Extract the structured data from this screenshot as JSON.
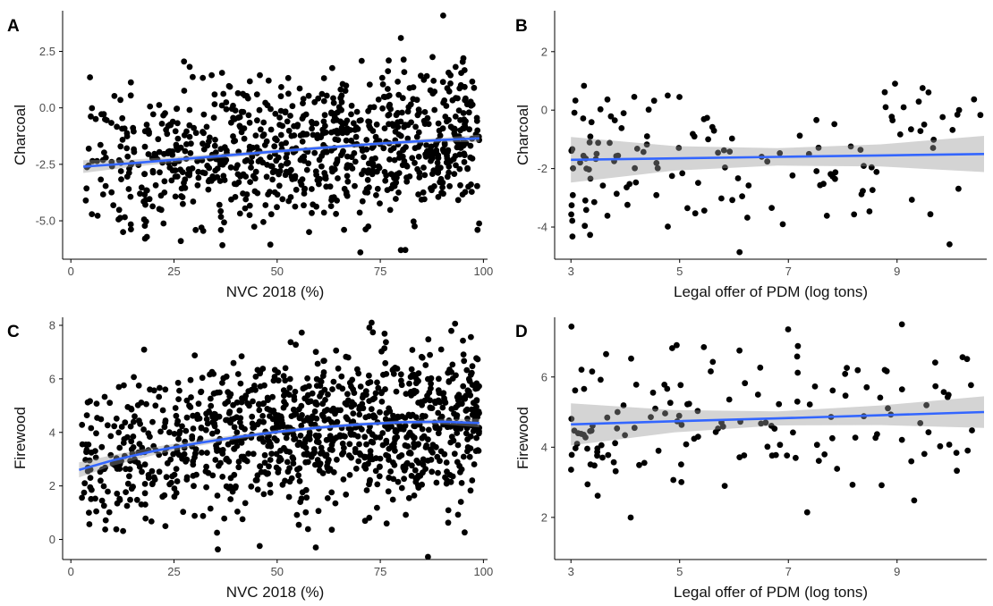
{
  "chart_data": [
    {
      "id": "A",
      "type": "scatter",
      "panel_label": "A",
      "xlabel": "NVC 2018 (%)",
      "ylabel": "Charcoal",
      "xlim": [
        -2,
        101
      ],
      "ylim": [
        -6.7,
        4.3
      ],
      "xticks": [
        0,
        25,
        50,
        75,
        100
      ],
      "yticks": [
        -5.0,
        -2.5,
        0.0,
        2.5
      ],
      "ytick_labels": [
        "-5.0",
        "-2.5",
        "0.0",
        "2.5"
      ],
      "points": {
        "description_free_generation": true,
        "n": 900,
        "x_range": [
          3,
          99
        ],
        "x_skew": 1.3,
        "trend": [
          [
            3,
            -2.6
          ],
          [
            30,
            -2.2
          ],
          [
            60,
            -1.75
          ],
          [
            99,
            -1.35
          ]
        ],
        "spread": 1.6,
        "y_range": [
          -6.4,
          4.2
        ],
        "seed": 11
      },
      "smooth": {
        "x": [
          3,
          15,
          30,
          45,
          60,
          75,
          90,
          99
        ],
        "y": [
          -2.6,
          -2.45,
          -2.22,
          -2.0,
          -1.78,
          -1.58,
          -1.42,
          -1.35
        ],
        "ci": [
          0.28,
          0.16,
          0.11,
          0.09,
          0.08,
          0.08,
          0.1,
          0.16
        ]
      }
    },
    {
      "id": "B",
      "type": "scatter",
      "panel_label": "B",
      "xlabel": "Legal offer of PDM (log tons)",
      "ylabel": "Charcoal",
      "xlim": [
        2.7,
        10.65
      ],
      "ylim": [
        -5.1,
        3.4
      ],
      "xticks": [
        3,
        5,
        7,
        9
      ],
      "yticks": [
        -4,
        -2,
        0,
        2
      ],
      "ytick_labels": [
        "-4",
        "-2",
        "0",
        "2"
      ],
      "points": {
        "description_free_generation": true,
        "n": 140,
        "x_range": [
          3.0,
          10.6
        ],
        "x_skew": 0.7,
        "trend": [
          [
            3.0,
            -1.7
          ],
          [
            10.6,
            -1.5
          ]
        ],
        "spread": 1.45,
        "y_range": [
          -4.9,
          3.3
        ],
        "seed": 23
      },
      "smooth": {
        "x": [
          3.0,
          4.9,
          6.8,
          8.7,
          10.6
        ],
        "y": [
          -1.7,
          -1.65,
          -1.6,
          -1.55,
          -1.5
        ],
        "ci": [
          0.78,
          0.42,
          0.3,
          0.38,
          0.62
        ]
      }
    },
    {
      "id": "C",
      "type": "scatter",
      "panel_label": "C",
      "xlabel": "NVC 2018 (%)",
      "ylabel": "Firewood",
      "xlim": [
        -2,
        101
      ],
      "ylim": [
        -0.75,
        8.3
      ],
      "xticks": [
        0,
        25,
        50,
        75,
        100
      ],
      "yticks": [
        0,
        2,
        4,
        6,
        8
      ],
      "ytick_labels": [
        "0",
        "2",
        "4",
        "6",
        "8"
      ],
      "points": {
        "description_free_generation": true,
        "n": 1100,
        "x_range": [
          2,
          99
        ],
        "x_skew": 1.25,
        "trend": [
          [
            2,
            2.6
          ],
          [
            20,
            3.25
          ],
          [
            40,
            3.8
          ],
          [
            60,
            4.2
          ],
          [
            80,
            4.42
          ],
          [
            99,
            4.35
          ]
        ],
        "spread": 1.4,
        "y_range": [
          -0.65,
          8.1
        ],
        "seed": 37
      },
      "smooth": {
        "x": [
          2,
          10,
          20,
          30,
          40,
          50,
          60,
          70,
          80,
          90,
          99
        ],
        "y": [
          2.6,
          2.95,
          3.3,
          3.58,
          3.82,
          4.02,
          4.18,
          4.3,
          4.38,
          4.4,
          4.35
        ],
        "ci": [
          0.28,
          0.2,
          0.15,
          0.11,
          0.09,
          0.08,
          0.07,
          0.07,
          0.07,
          0.1,
          0.16
        ]
      }
    },
    {
      "id": "D",
      "type": "scatter",
      "panel_label": "D",
      "xlabel": "Legal offer of PDM (log tons)",
      "ylabel": "Firewood",
      "xlim": [
        2.7,
        10.65
      ],
      "ylim": [
        0.8,
        7.7
      ],
      "xticks": [
        3,
        5,
        7,
        9
      ],
      "yticks": [
        2,
        4,
        6
      ],
      "ytick_labels": [
        "2",
        "4",
        "6"
      ],
      "points": {
        "description_free_generation": true,
        "n": 150,
        "x_range": [
          3.0,
          10.6
        ],
        "x_skew": 0.7,
        "trend": [
          [
            3.0,
            4.65
          ],
          [
            10.6,
            5.0
          ]
        ],
        "spread": 1.05,
        "y_range": [
          0.95,
          7.5
        ],
        "seed": 51
      },
      "smooth": {
        "x": [
          3.0,
          4.9,
          6.8,
          8.7,
          10.6
        ],
        "y": [
          4.65,
          4.74,
          4.82,
          4.91,
          5.0
        ],
        "ci": [
          0.6,
          0.32,
          0.2,
          0.28,
          0.45
        ]
      }
    }
  ]
}
